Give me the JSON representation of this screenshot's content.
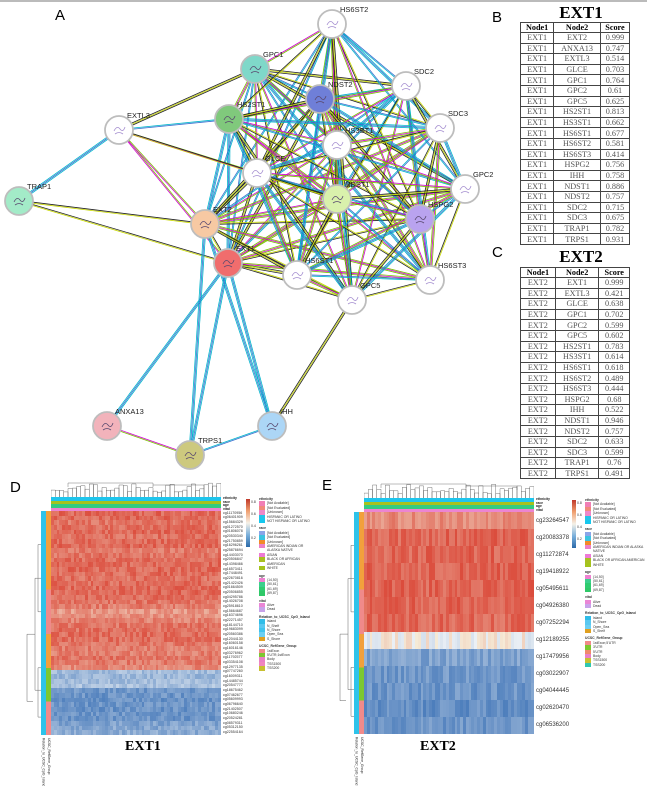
{
  "panels": {
    "a": "A",
    "b": "B",
    "c": "C",
    "d": "D",
    "e": "E"
  },
  "network": {
    "nodes": [
      {
        "id": "HS6ST2",
        "color": "#ffffff"
      },
      {
        "id": "GPC1",
        "color": "#7fd8c9"
      },
      {
        "id": "SDC2",
        "color": "#ffffff"
      },
      {
        "id": "NDST2",
        "color": "#6f7fd8"
      },
      {
        "id": "HS2ST1",
        "color": "#80c97c"
      },
      {
        "id": "EXTL3",
        "color": "#ffffff"
      },
      {
        "id": "SDC3",
        "color": "#ffffff"
      },
      {
        "id": "HS3ST1",
        "color": "#ffffff"
      },
      {
        "id": "GLCE",
        "color": "#ffffff"
      },
      {
        "id": "GPC2",
        "color": "#ffffff"
      },
      {
        "id": "NDST1",
        "color": "#d9f1ac"
      },
      {
        "id": "TRAP1",
        "color": "#a3ebc8"
      },
      {
        "id": "EXT2",
        "color": "#f7c9a3"
      },
      {
        "id": "HSPG2",
        "color": "#b9a3ef"
      },
      {
        "id": "EXT1",
        "color": "#f06d6d"
      },
      {
        "id": "HS6ST1",
        "color": "#ffffff"
      },
      {
        "id": "HS6ST3",
        "color": "#ffffff"
      },
      {
        "id": "GPC5",
        "color": "#ffffff"
      },
      {
        "id": "ANXA13",
        "color": "#f2b3bb"
      },
      {
        "id": "IHH",
        "color": "#acd6f6"
      },
      {
        "id": "TRPS1",
        "color": "#cdc97e"
      }
    ],
    "edge_colors": [
      "#c8d800",
      "#00b5cc",
      "#d000d0",
      "#222222",
      "#3a6fd0",
      "#7ac000"
    ],
    "adjacency": {
      "EXT1": [
        "EXT2",
        "ANXA13",
        "EXTL3",
        "GLCE",
        "GPC1",
        "GPC2",
        "GPC5",
        "HS2ST1",
        "HS3ST1",
        "HS6ST1",
        "HS6ST2",
        "HS6ST3",
        "HSPG2",
        "IHH",
        "NDST1",
        "NDST2",
        "SDC2",
        "SDC3",
        "TRAP1",
        "TRPS1"
      ],
      "EXT2": [
        "EXTL3",
        "GLCE",
        "GPC1",
        "GPC2",
        "GPC5",
        "HS2ST1",
        "HS3ST1",
        "HS6ST1",
        "HS6ST2",
        "HS6ST3",
        "HSPG2",
        "IHH",
        "NDST1",
        "NDST2",
        "SDC2",
        "SDC3",
        "TRAP1",
        "TRPS1"
      ],
      "GPC1": [
        "HS6ST2",
        "SDC2",
        "NDST2",
        "HS2ST1",
        "SDC3",
        "HS3ST1",
        "GLCE",
        "GPC2",
        "NDST1",
        "HSPG2",
        "HS6ST1",
        "HS6ST3",
        "GPC5",
        "EXTL3"
      ],
      "HS6ST2": [
        "SDC2",
        "NDST2",
        "HS2ST1",
        "SDC3",
        "HS3ST1",
        "GLCE",
        "GPC2",
        "NDST1",
        "HSPG2",
        "HS6ST1",
        "HS6ST3",
        "GPC5"
      ],
      "SDC2": [
        "NDST2",
        "HS2ST1",
        "SDC3",
        "HS3ST1",
        "GLCE",
        "GPC2",
        "NDST1",
        "HSPG2",
        "HS6ST1",
        "HS6ST3",
        "GPC5"
      ],
      "NDST2": [
        "HS2ST1",
        "SDC3",
        "HS3ST1",
        "GLCE",
        "GPC2",
        "NDST1",
        "HSPG2",
        "HS6ST1",
        "HS6ST3",
        "GPC5"
      ],
      "HS2ST1": [
        "SDC3",
        "HS3ST1",
        "GLCE",
        "GPC2",
        "NDST1",
        "HSPG2",
        "HS6ST1",
        "HS6ST3",
        "GPC5",
        "EXTL3"
      ],
      "SDC3": [
        "HS3ST1",
        "GLCE",
        "GPC2",
        "NDST1",
        "HSPG2",
        "HS6ST1",
        "HS6ST3",
        "GPC5"
      ],
      "HS3ST1": [
        "GLCE",
        "GPC2",
        "NDST1",
        "HSPG2",
        "HS6ST1",
        "HS6ST3",
        "GPC5"
      ],
      "GLCE": [
        "GPC2",
        "NDST1",
        "HSPG2",
        "HS6ST1",
        "HS6ST3",
        "GPC5",
        "EXTL3"
      ],
      "GPC2": [
        "NDST1",
        "HSPG2",
        "HS6ST1",
        "HS6ST3",
        "GPC5"
      ],
      "NDST1": [
        "HSPG2",
        "HS6ST1",
        "HS6ST3",
        "GPC5",
        "EXTL3"
      ],
      "HSPG2": [
        "HS6ST1",
        "HS6ST3",
        "GPC5"
      ],
      "HS6ST1": [
        "HS6ST3",
        "GPC5"
      ],
      "HS6ST3": [
        "GPC5"
      ],
      "EXTL3": [
        "TRAP1"
      ],
      "ANXA13": [
        "TRPS1"
      ],
      "IHH": [
        "GPC5",
        "TRPS1"
      ]
    }
  },
  "table_ext1": {
    "title": "EXT1",
    "headers": [
      "Node1",
      "Node2",
      "Score"
    ],
    "rows": [
      [
        "EXT1",
        "EXT2",
        "0.999"
      ],
      [
        "EXT1",
        "ANXA13",
        "0.747"
      ],
      [
        "EXT1",
        "EXTL3",
        "0.514"
      ],
      [
        "EXT1",
        "GLCE",
        "0.703"
      ],
      [
        "EXT1",
        "GPC1",
        "0.764"
      ],
      [
        "EXT1",
        "GPC2",
        "0.61"
      ],
      [
        "EXT1",
        "GPC5",
        "0.625"
      ],
      [
        "EXT1",
        "HS2ST1",
        "0.813"
      ],
      [
        "EXT1",
        "HS3ST1",
        "0.662"
      ],
      [
        "EXT1",
        "HS6ST1",
        "0.677"
      ],
      [
        "EXT1",
        "HS6ST2",
        "0.581"
      ],
      [
        "EXT1",
        "HS6ST3",
        "0.414"
      ],
      [
        "EXT1",
        "HSPG2",
        "0.756"
      ],
      [
        "EXT1",
        "IHH",
        "0.758"
      ],
      [
        "EXT1",
        "NDST1",
        "0.886"
      ],
      [
        "EXT1",
        "NDST2",
        "0.757"
      ],
      [
        "EXT1",
        "SDC2",
        "0.715"
      ],
      [
        "EXT1",
        "SDC3",
        "0.675"
      ],
      [
        "EXT1",
        "TRAP1",
        "0.782"
      ],
      [
        "EXT1",
        "TRPS1",
        "0.931"
      ]
    ]
  },
  "table_ext2": {
    "title": "EXT2",
    "headers": [
      "Node1",
      "Node2",
      "Score"
    ],
    "rows": [
      [
        "EXT2",
        "EXT1",
        "0.999"
      ],
      [
        "EXT2",
        "EXTL3",
        "0.421"
      ],
      [
        "EXT2",
        "GLCE",
        "0.638"
      ],
      [
        "EXT2",
        "GPC1",
        "0.702"
      ],
      [
        "EXT2",
        "GPC2",
        "0.599"
      ],
      [
        "EXT2",
        "GPC5",
        "0.602"
      ],
      [
        "EXT2",
        "HS2ST1",
        "0.783"
      ],
      [
        "EXT2",
        "HS3ST1",
        "0.614"
      ],
      [
        "EXT2",
        "HS6ST1",
        "0.618"
      ],
      [
        "EXT2",
        "HS6ST2",
        "0.489"
      ],
      [
        "EXT2",
        "HS6ST3",
        "0.444"
      ],
      [
        "EXT2",
        "HSPG2",
        "0.68"
      ],
      [
        "EXT2",
        "IHH",
        "0.522"
      ],
      [
        "EXT2",
        "NDST1",
        "0.946"
      ],
      [
        "EXT2",
        "NDST2",
        "0.757"
      ],
      [
        "EXT2",
        "SDC2",
        "0.633"
      ],
      [
        "EXT2",
        "SDC3",
        "0.599"
      ],
      [
        "EXT2",
        "TRAP1",
        "0.76"
      ],
      [
        "EXT2",
        "TRPS1",
        "0.491"
      ]
    ]
  },
  "heatmap_d": {
    "title": "EXT1",
    "annotation_labels": [
      "ethnicity",
      "race",
      "age",
      "vital"
    ],
    "side_labels": [
      "Relation_to_UCSC_CpG_Island",
      "UCSC_RefGene_Group"
    ],
    "colorbar_ticks": [
      "0.8",
      "0.6",
      "0.4",
      "0.2"
    ],
    "rows": [
      {
        "label": "cg11170956",
        "level": 0.85
      },
      {
        "label": "cg06401909",
        "level": 0.85
      },
      {
        "label": "cg15684329",
        "level": 0.82
      },
      {
        "label": "cg01272570",
        "level": 0.84
      },
      {
        "label": "cg01806078",
        "level": 0.85
      },
      {
        "label": "cg20530340",
        "level": 0.83
      },
      {
        "label": "cg21750859",
        "level": 0.84
      },
      {
        "label": "cg16296261",
        "level": 0.86
      },
      {
        "label": "cg25876694",
        "level": 0.8
      },
      {
        "label": "cg14403070",
        "level": 0.82
      },
      {
        "label": "cg20506847",
        "level": 0.84
      },
      {
        "label": "cg14398466",
        "level": 0.85
      },
      {
        "label": "cg16573411",
        "level": 0.85
      },
      {
        "label": "cg17448491",
        "level": 0.84
      },
      {
        "label": "cg22670816",
        "level": 0.83
      },
      {
        "label": "cg21422426",
        "level": 0.84
      },
      {
        "label": "cg01664509",
        "level": 0.85
      },
      {
        "label": "cg20506855",
        "level": 0.85
      },
      {
        "label": "cg04295786",
        "level": 0.84
      },
      {
        "label": "cg14026708",
        "level": 0.82
      },
      {
        "label": "cg25918610",
        "level": 0.8
      },
      {
        "label": "cg15664687",
        "level": 0.72
      },
      {
        "label": "cg16374696",
        "level": 0.74
      },
      {
        "label": "cg22271457",
        "level": 0.78
      },
      {
        "label": "cg18144710",
        "level": 0.82
      },
      {
        "label": "cg19683099",
        "level": 0.83
      },
      {
        "label": "cg20560386",
        "level": 0.84
      },
      {
        "label": "cg12044130",
        "level": 0.83
      },
      {
        "label": "cg16060158",
        "level": 0.82
      },
      {
        "label": "cg16016146",
        "level": 0.8
      },
      {
        "label": "cg03276962",
        "level": 0.79
      },
      {
        "label": "cg11792577",
        "level": 0.82
      },
      {
        "label": "cg03354108",
        "level": 0.8
      },
      {
        "label": "cg12977135",
        "level": 0.77
      },
      {
        "label": "cg07747260",
        "level": 0.3
      },
      {
        "label": "cg16009311",
        "level": 0.28
      },
      {
        "label": "cg14485744",
        "level": 0.3
      },
      {
        "label": "cg20547777",
        "level": 0.32
      },
      {
        "label": "cg18675462",
        "level": 0.16
      },
      {
        "label": "cg07462677",
        "level": 0.15
      },
      {
        "label": "cg05609993",
        "level": 0.14
      },
      {
        "label": "cg06796640",
        "level": 0.15
      },
      {
        "label": "cg21402507",
        "level": 0.14
      },
      {
        "label": "cg10680246",
        "level": 0.15
      },
      {
        "label": "cg20524281",
        "level": 0.15
      },
      {
        "label": "cg08579311",
        "level": 0.2
      },
      {
        "label": "cg05312150",
        "level": 0.22
      },
      {
        "label": "cg22554164",
        "level": 0.24
      }
    ],
    "legend": [
      {
        "title": "ethnicity",
        "items": [
          [
            "[Not Available]",
            "#f17fb5"
          ],
          [
            "[Not Evaluated]",
            "#f08a7a"
          ],
          [
            "[Unknown]",
            "#ee88c8"
          ],
          [
            "HISPANIC OR LATINO",
            "#22c4e8"
          ],
          [
            "NOT HISPANIC OR LATINO",
            "#16c8ee"
          ]
        ]
      },
      {
        "title": "race",
        "items": [
          [
            "[Not Available]",
            "#8ba5e8"
          ],
          [
            "[Not Evaluated]",
            "#3cc3e0"
          ],
          [
            "[Unknown]",
            "#f28a2a"
          ],
          [
            "AMERICAN INDIAN OR ALASKA NATIVE",
            "#ec80c8"
          ],
          [
            "ASIAN",
            "#ee7ad6"
          ],
          [
            "BLACK OR AFRICAN AMERICAN",
            "#a8c020"
          ],
          [
            "WHITE",
            "#a4c41c"
          ]
        ]
      },
      {
        "title": "age",
        "items": [
          [
            "(14,50]",
            "#ee80d0"
          ],
          [
            "(50,61]",
            "#3ccf8c"
          ],
          [
            "(61,69]",
            "#30cc70"
          ],
          [
            "(69,87]",
            "#2fc868"
          ]
        ]
      },
      {
        "title": "vital",
        "items": [
          [
            "Alive",
            "#ea86d6"
          ],
          [
            "Dead",
            "#c8a2ea"
          ]
        ]
      },
      {
        "title": "Relation_to_UCSC_CpG_Island",
        "items": [
          [
            "Island",
            "#30bde8"
          ],
          [
            "N_Shelf",
            "#5ac8f0"
          ],
          [
            "N_Shore",
            "#40c4ee"
          ],
          [
            "Open_Sea",
            "#6ccff2"
          ],
          [
            "S_Shore",
            "#e0a020"
          ]
        ]
      },
      {
        "title": "UCSC_RefGene_Group",
        "items": [
          [
            "1stExon",
            "#f28a8a"
          ],
          [
            "5'UTR;1stExon",
            "#7cc830"
          ],
          [
            "Body",
            "#ea80c6"
          ],
          [
            "TSS1500",
            "#f086c0"
          ],
          [
            "TSS200",
            "#c8c030"
          ]
        ]
      }
    ]
  },
  "heatmap_e": {
    "title": "EXT2",
    "annotation_labels": [
      "ethnicity",
      "race",
      "age",
      "vital"
    ],
    "side_labels": [
      "Relation_to_UCSC_CpG_Island",
      "UCSC_RefGene_Group"
    ],
    "colorbar_ticks": [
      "0.8",
      "0.6",
      "0.4",
      "0.2"
    ],
    "rows": [
      {
        "label": "cg23264547",
        "level": 0.76
      },
      {
        "label": "cg20083378",
        "level": 0.86
      },
      {
        "label": "cg11272874",
        "level": 0.86
      },
      {
        "label": "cg19418922",
        "level": 0.86
      },
      {
        "label": "cg05495611",
        "level": 0.86
      },
      {
        "label": "cg04926380",
        "level": 0.86
      },
      {
        "label": "cg07252294",
        "level": 0.85
      },
      {
        "label": "cg12189255",
        "level": 0.5
      },
      {
        "label": "cg17479956",
        "level": 0.2
      },
      {
        "label": "cg03022907",
        "level": 0.16
      },
      {
        "label": "cg04044445",
        "level": 0.15
      },
      {
        "label": "cg02620470",
        "level": 0.13
      },
      {
        "label": "cg06536200",
        "level": 0.15
      }
    ],
    "legend": [
      {
        "title": "ethnicity",
        "items": [
          [
            "[Not Available]",
            "#f17fb5"
          ],
          [
            "[Not Evaluated]",
            "#f08a7a"
          ],
          [
            "[Unknown]",
            "#ee88c8"
          ],
          [
            "HISPANIC OR LATINO",
            "#22c4e8"
          ],
          [
            "NOT HISPANIC OR LATINO",
            "#16c8ee"
          ]
        ]
      },
      {
        "title": "race",
        "items": [
          [
            "[Not Available]",
            "#8ba5e8"
          ],
          [
            "[Not Evaluated]",
            "#3cc3e0"
          ],
          [
            "[Unknown]",
            "#f28a2a"
          ],
          [
            "AMERICAN INDIAN OR ALASKA NATIVE",
            "#ec80c8"
          ],
          [
            "ASIAN",
            "#ee7ad6"
          ],
          [
            "BLACK OR AFRICAN AMERICAN",
            "#a8c020"
          ],
          [
            "WHITE",
            "#a4c41c"
          ]
        ]
      },
      {
        "title": "age",
        "items": [
          [
            "(14,50]",
            "#ee80d0"
          ],
          [
            "(50,61]",
            "#3ccf8c"
          ],
          [
            "(61,69]",
            "#30cc70"
          ],
          [
            "(69,87]",
            "#2fc868"
          ]
        ]
      },
      {
        "title": "vital",
        "items": [
          [
            "Alive",
            "#ea86d6"
          ],
          [
            "Dead",
            "#c8a2ea"
          ]
        ]
      },
      {
        "title": "Relation_to_UCSC_CpG_Island",
        "items": [
          [
            "Island",
            "#30bde8"
          ],
          [
            "N_Shore",
            "#5ac8f0"
          ],
          [
            "Open_Sea",
            "#6ccff2"
          ],
          [
            "S_Shelf",
            "#e0a020"
          ]
        ]
      },
      {
        "title": "UCSC_RefGene_Group",
        "items": [
          [
            "1stExon;5'UTR",
            "#f28a8a"
          ],
          [
            "3'UTR",
            "#7cc830"
          ],
          [
            "5'UTR",
            "#f08a6a"
          ],
          [
            "Body",
            "#ea80c6"
          ],
          [
            "TSS1500",
            "#c8c030"
          ],
          [
            "TSS200",
            "#30c8b0"
          ]
        ]
      }
    ]
  }
}
